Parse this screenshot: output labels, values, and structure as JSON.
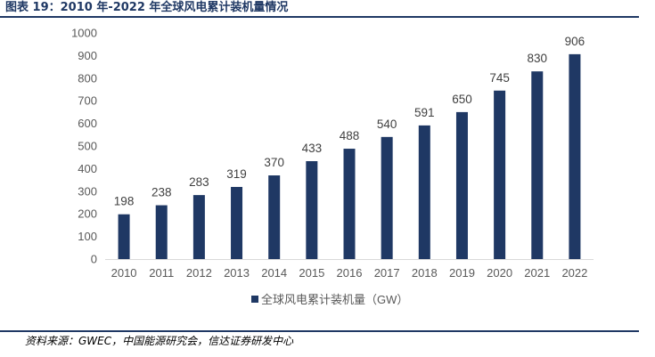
{
  "figure": {
    "title": "图表 19：2010 年-2022 年全球风电累计装机量情况",
    "source": "资料来源：GWEC，中国能源研究会，信达证券研发中心"
  },
  "chart_data": {
    "type": "bar",
    "categories": [
      "2010",
      "2011",
      "2012",
      "2013",
      "2014",
      "2015",
      "2016",
      "2017",
      "2018",
      "2019",
      "2020",
      "2021",
      "2022"
    ],
    "series": [
      {
        "name": "全球风电累计装机量（GW）",
        "values": [
          198,
          238,
          283,
          319,
          370,
          433,
          488,
          540,
          591,
          650,
          745,
          830,
          906
        ],
        "color": "#1f3864"
      }
    ],
    "ylim": [
      0,
      1000
    ],
    "yticks": [
      0,
      100,
      200,
      300,
      400,
      500,
      600,
      700,
      800,
      900,
      1000
    ],
    "grid": false,
    "data_labels": true,
    "legend": "bottom-center"
  }
}
